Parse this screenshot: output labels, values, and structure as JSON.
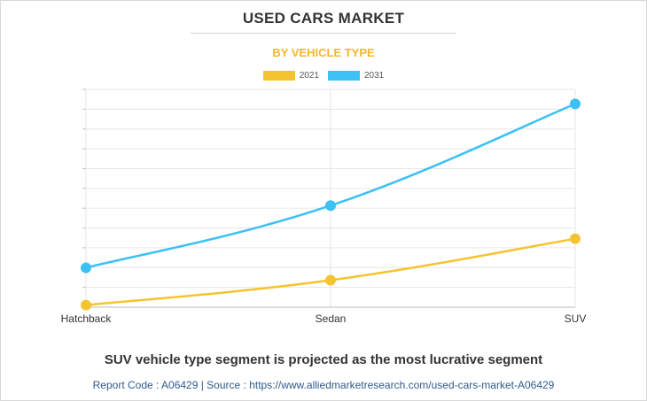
{
  "header": {
    "title": "USED CARS MARKET",
    "subtitle": "BY VEHICLE TYPE"
  },
  "colors": {
    "series_2021": "#f4c430",
    "series_2031": "#3cc1f5",
    "subtitle": "#f4b72b",
    "grid": "#e6e6e6",
    "source_text": "#2f5b8f"
  },
  "legend": {
    "placement": "top-center",
    "items": [
      {
        "label": "2021",
        "color": "#f4c430"
      },
      {
        "label": "2031",
        "color": "#3cc1f5"
      }
    ]
  },
  "chart_data": {
    "type": "line",
    "title": "USED CARS MARKET",
    "subtitle": "BY VEHICLE TYPE",
    "xlabel": "",
    "ylabel": "",
    "categories": [
      "Hatchback",
      "Sedan",
      "SUV"
    ],
    "series": [
      {
        "name": "2021",
        "color": "#f4c430",
        "values": [
          1.0,
          13.0,
          33.0
        ]
      },
      {
        "name": "2031",
        "color": "#3cc1f5",
        "values": [
          19.0,
          49.0,
          98.0
        ]
      }
    ],
    "ylim": [
      0,
      105
    ],
    "y_tick_labels_shown": false,
    "grid": true,
    "smooth": true
  },
  "footer": {
    "caption": "SUV vehicle type segment is projected as the most lucrative segment",
    "source": "Report Code : A06429  |  Source : https://www.alliedmarketresearch.com/used-cars-market-A06429"
  }
}
